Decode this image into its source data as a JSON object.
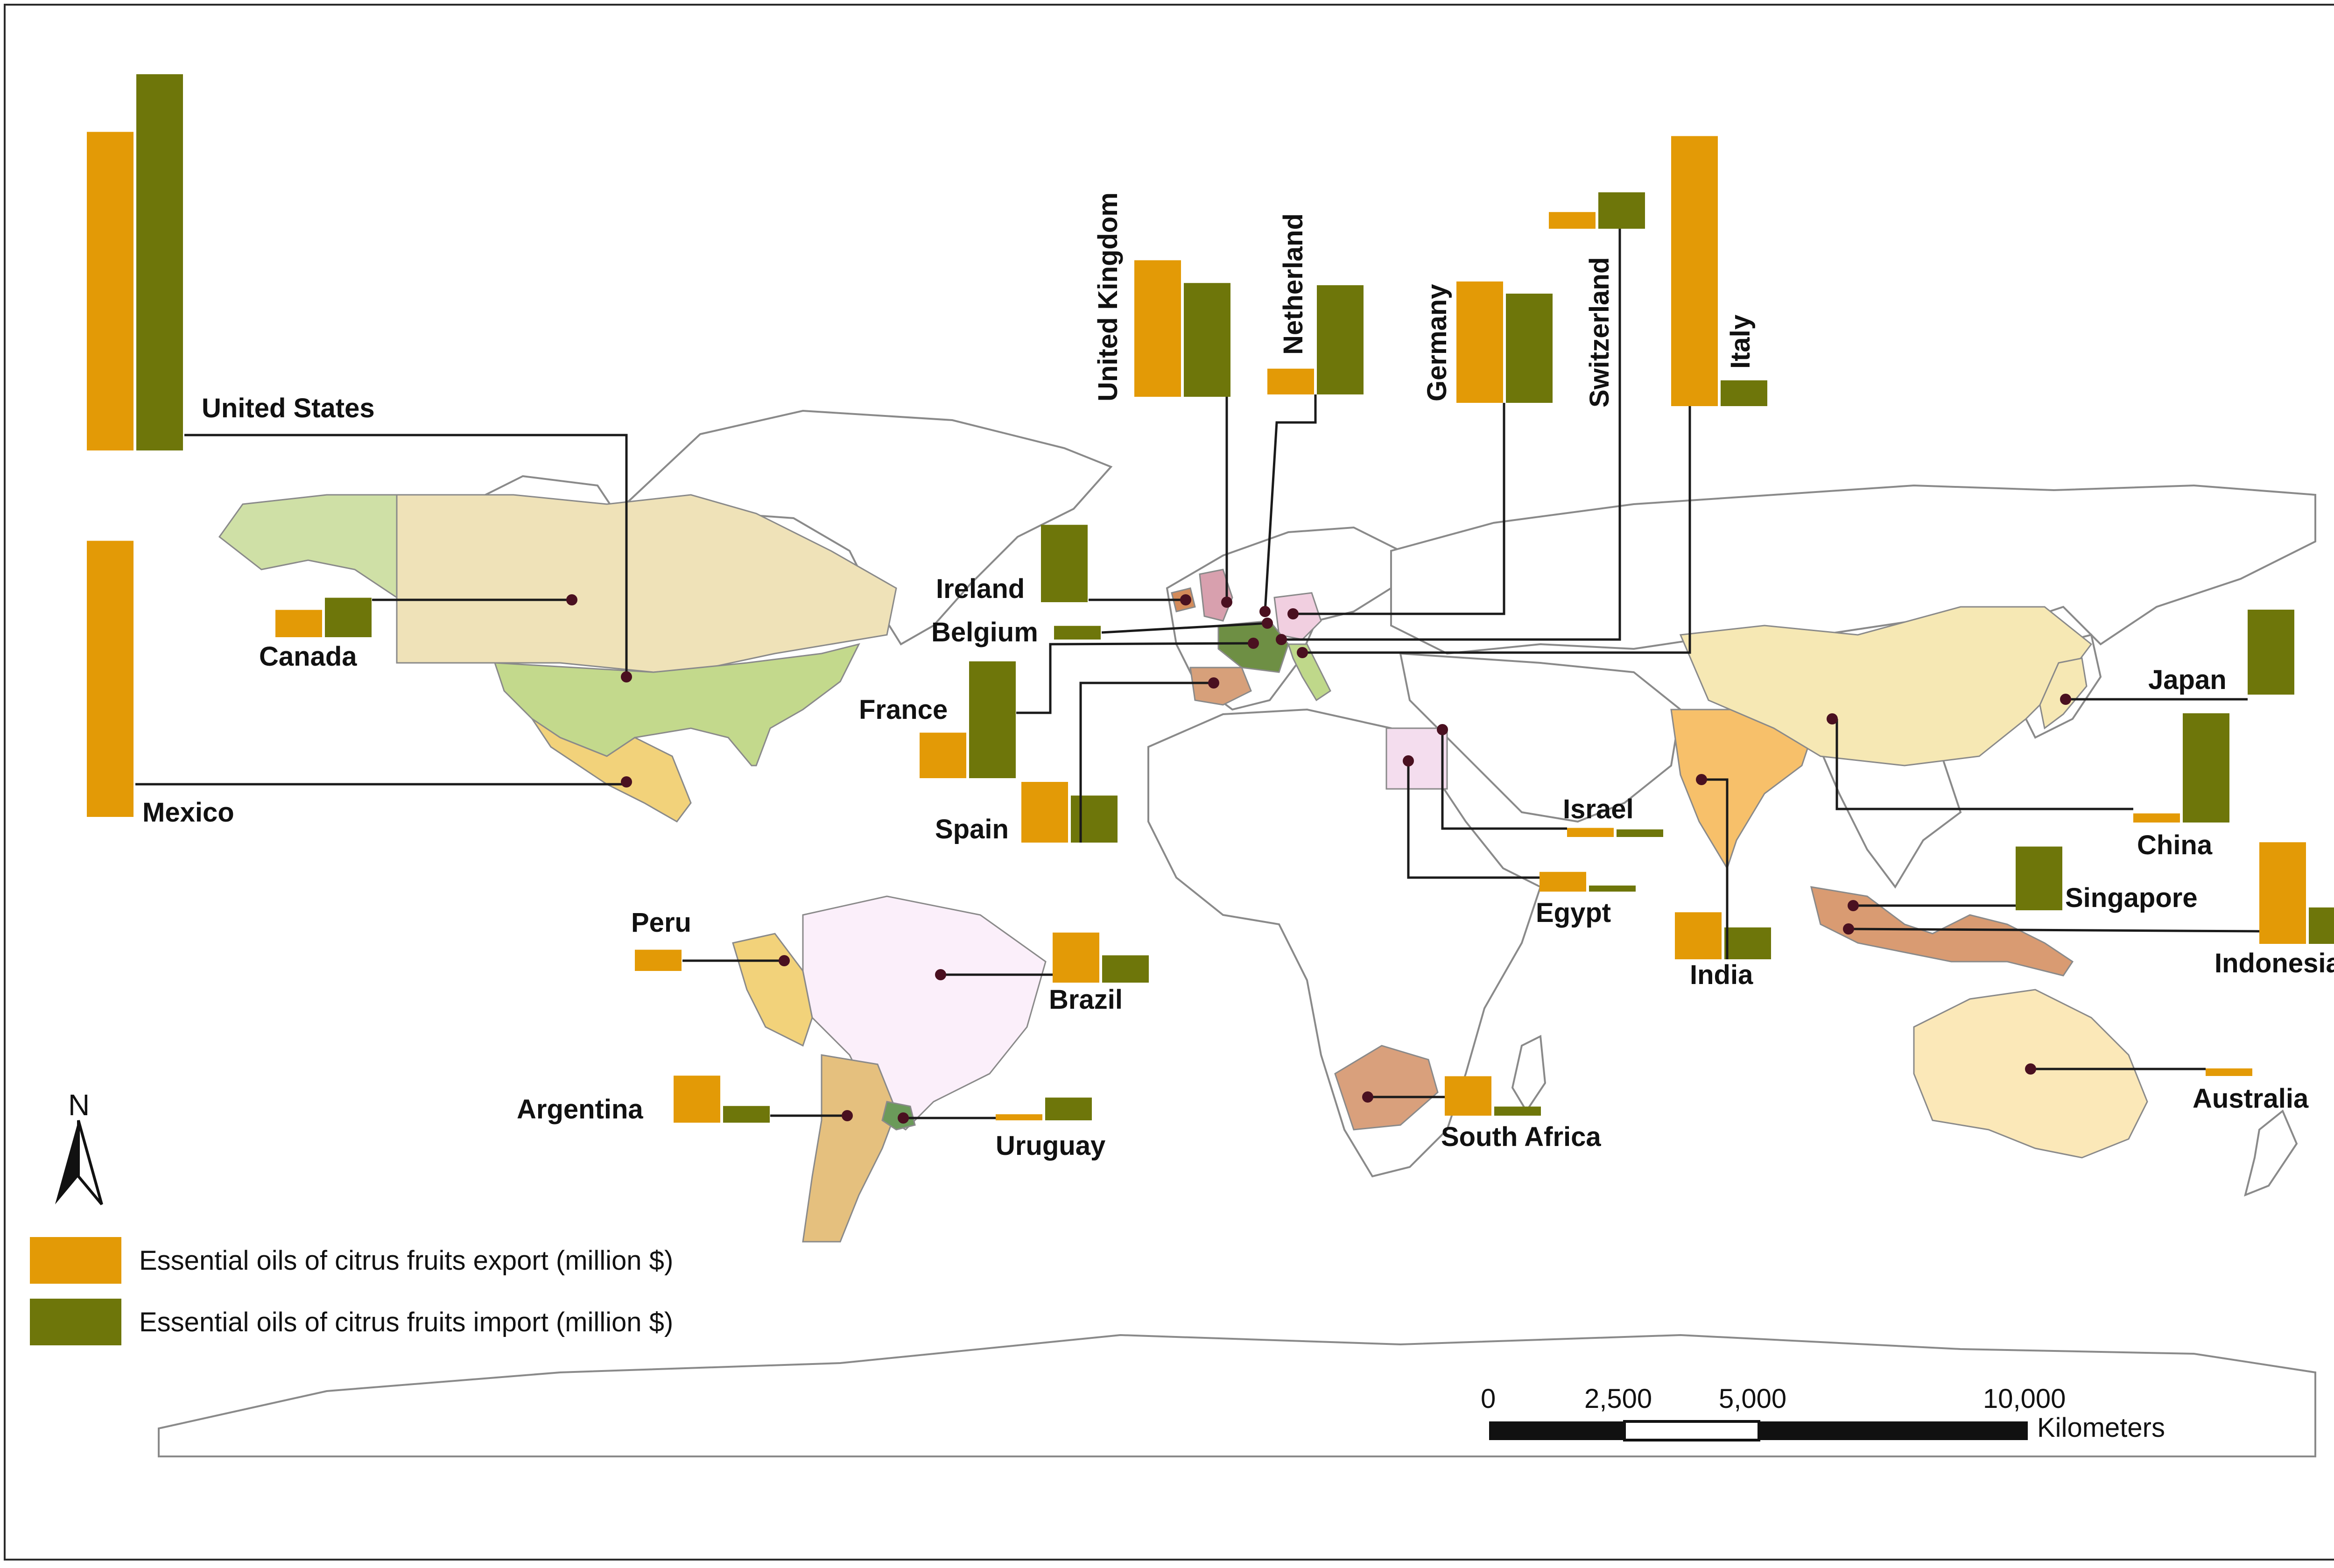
{
  "colors": {
    "export": "#E39A06",
    "import": "#6E760A",
    "land_outline": "#8a8a8a",
    "leader": "#1a1a1a",
    "dot": "#4a1020"
  },
  "legend": {
    "export_label": "Essential oils of citrus fruits export (million $)",
    "import_label": "Essential oils of citrus fruits import (million $)"
  },
  "north_arrow": {
    "label": "N"
  },
  "scale_bar": {
    "ticks": [
      "0",
      "2,500",
      "5,000",
      "10,000"
    ],
    "unit": "Kilometers"
  },
  "countries": [
    {
      "key": "us",
      "name": "United States",
      "export": 210,
      "import": 248
    },
    {
      "key": "mexico",
      "name": "Mexico",
      "export": 182,
      "import": 0
    },
    {
      "key": "canada",
      "name": "Canada",
      "export": 18,
      "import": 26
    },
    {
      "key": "peru",
      "name": "Peru",
      "export": 14,
      "import": 0
    },
    {
      "key": "brazil",
      "name": "Brazil",
      "export": 33,
      "import": 18
    },
    {
      "key": "argentina",
      "name": "Argentina",
      "export": 31,
      "import": 11
    },
    {
      "key": "uruguay",
      "name": "Uruguay",
      "export": 4,
      "import": 15
    },
    {
      "key": "uk",
      "name": "United Kingdom",
      "export": 90,
      "import": 75
    },
    {
      "key": "netherland",
      "name": "Netherland",
      "export": 17,
      "import": 72
    },
    {
      "key": "germany",
      "name": "Germany",
      "export": 80,
      "import": 72
    },
    {
      "key": "switzerland",
      "name": "Switzerland",
      "export": 11,
      "import": 24
    },
    {
      "key": "italy",
      "name": "Italy",
      "export": 178,
      "import": 17
    },
    {
      "key": "ireland",
      "name": "Ireland",
      "export": 0,
      "import": 51
    },
    {
      "key": "belgium",
      "name": "Belgium",
      "export": 0,
      "import": 9
    },
    {
      "key": "france",
      "name": "France",
      "export": 30,
      "import": 77
    },
    {
      "key": "spain",
      "name": "Spain",
      "export": 40,
      "import": 31
    },
    {
      "key": "israel",
      "name": "Israel",
      "export": 6,
      "import": 5
    },
    {
      "key": "egypt",
      "name": "Egypt",
      "export": 13,
      "import": 4
    },
    {
      "key": "south_africa",
      "name": "South Africa",
      "export": 26,
      "import": 6
    },
    {
      "key": "india",
      "name": "India",
      "export": 31,
      "import": 21
    },
    {
      "key": "china",
      "name": "China",
      "export": 6,
      "import": 72
    },
    {
      "key": "japan",
      "name": "Japan",
      "export": 0,
      "import": 56
    },
    {
      "key": "singapore",
      "name": "Singapore",
      "export": 0,
      "import": 42
    },
    {
      "key": "indonesia",
      "name": "Indonesia",
      "export": 67,
      "import": 24
    },
    {
      "key": "australia",
      "name": "Australia",
      "export": 5,
      "import": 0
    }
  ]
}
